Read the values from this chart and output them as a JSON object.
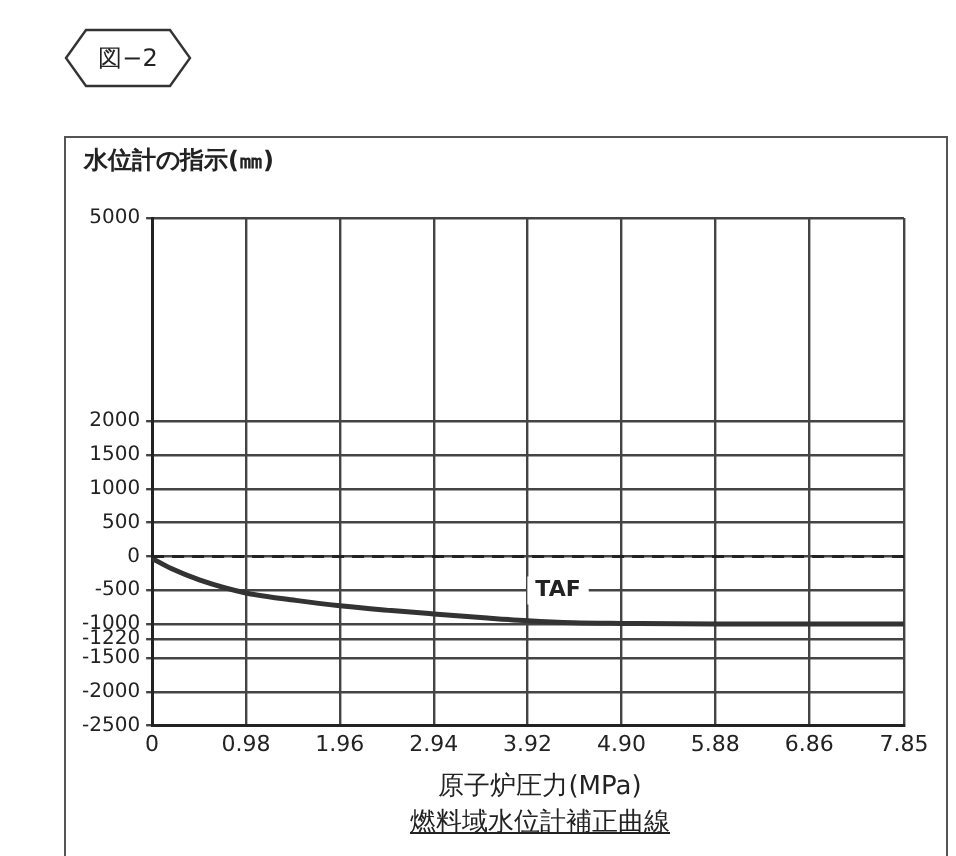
{
  "chart_data": {
    "type": "line",
    "title": "図−2",
    "subtitle": "燃料域水位計補正曲線",
    "xlabel": "原子炉圧力(MPa)",
    "ylabel": "水位計の指示(㎜)",
    "x": [
      0,
      0.2,
      0.5,
      0.98,
      1.5,
      1.96,
      2.5,
      2.94,
      3.5,
      3.92,
      4.4,
      4.9,
      5.88,
      6.86,
      7.85
    ],
    "series": [
      {
        "color": "#333333",
        "values": [
          -30,
          -180,
          -350,
          -540,
          -650,
          -730,
          -800,
          -850,
          -910,
          -950,
          -980,
          -990,
          -1000,
          -1000,
          -1000
        ]
      }
    ],
    "xlim": [
      0,
      7.85
    ],
    "xticks": [
      0,
      0.98,
      1.96,
      2.94,
      3.92,
      {
        "value": 4.9,
        "label": "4.90"
      },
      5.88,
      6.86,
      7.85
    ],
    "ylim": [
      -2500,
      5000
    ],
    "yticks": [
      -2500,
      -2000,
      -1500,
      -1220,
      -1000,
      -500,
      0,
      500,
      1000,
      1500,
      2000,
      5000
    ],
    "ref_lines": [
      {
        "axis": "y",
        "value": 0,
        "label": "TAF",
        "line_style": "dashed",
        "color": "#222222"
      }
    ],
    "grid": true,
    "legend": false,
    "marker": "none",
    "line_style": "solid"
  }
}
